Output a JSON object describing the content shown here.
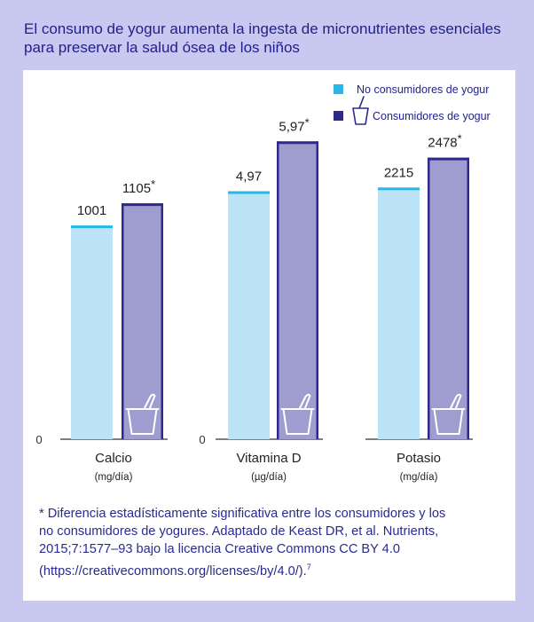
{
  "title_lines": [
    "El consumo de yogur aumenta la ingesta de micronutrientes esenciales",
    "para preservar la salud ósea de los niños"
  ],
  "colors": {
    "background": "#c9c8f0",
    "non_consumer_fill": "#bde3f7",
    "non_consumer_top": "#29b6e8",
    "consumer_fill": "#9f9dd0",
    "consumer_top": "#2d2a8a",
    "text": "#1f1f8c"
  },
  "icons": [
    "yogurt-cup-icon"
  ],
  "chart_data": {
    "type": "bar",
    "legend_position": "top-right",
    "legend": [
      "No consumidores de yogur",
      "Consumidores de yogur"
    ],
    "groups": [
      {
        "category": "Calcio",
        "unit": "(mg/día)",
        "axis_zero": "",
        "values": [
          1001,
          1105
        ],
        "labels": [
          "1001",
          "1105"
        ],
        "marks": [
          "",
          "*"
        ],
        "ymax": 1650
      },
      {
        "category": "Vitamina D",
        "unit": "(µg/día)",
        "axis_zero": "0",
        "values": [
          4.97,
          5.97
        ],
        "labels": [
          "4,97",
          "5,97"
        ],
        "marks": [
          "",
          "*"
        ],
        "ymax": 7.06
      },
      {
        "category": "Potasio",
        "unit": "(mg/día)",
        "axis_zero": "",
        "values": [
          2215,
          2478
        ],
        "labels": [
          "2215",
          "2478"
        ],
        "marks": [
          "",
          "*"
        ],
        "ymax": 3100
      }
    ],
    "first_axis_zero": "0"
  },
  "footnote_lines": [
    "* Diferencia estadísticamente significativa entre los consumidores y los",
    "no consumidores de yogures. Adaptado de Keast DR, et al. Nutrients,",
    "2015;7:1577–93 bajo la licencia Creative Commons CC BY 4.0",
    "(https://creativecommons.org/licenses/by/4.0/)."
  ],
  "footnote_ref": "7"
}
